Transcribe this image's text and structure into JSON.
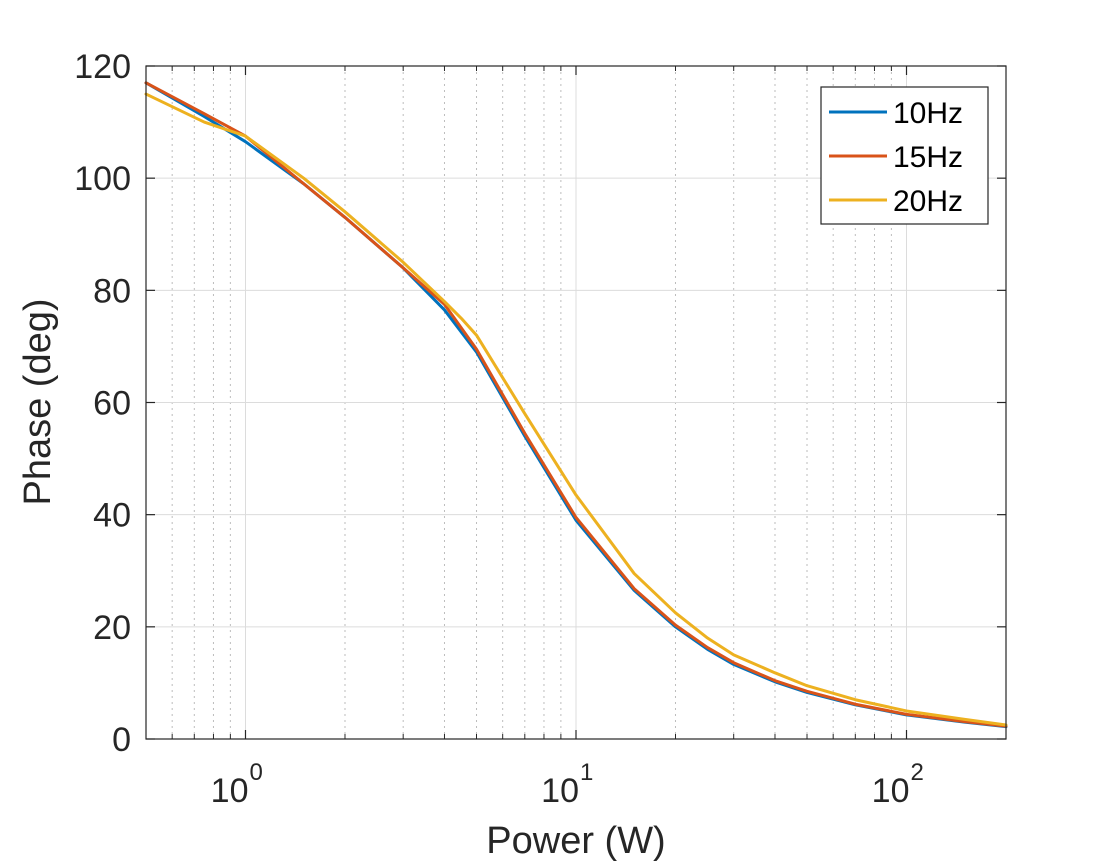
{
  "chart_data": {
    "type": "line",
    "title": "",
    "xlabel": "Power (W)",
    "ylabel": "Phase (deg)",
    "xscale": "log",
    "xlim": [
      0.5,
      200
    ],
    "ylim": [
      0,
      120
    ],
    "grid": true,
    "legend_position": "top-right",
    "x_ticks": [
      {
        "value": 1,
        "base": "10",
        "exponent": "0"
      },
      {
        "value": 10,
        "base": "10",
        "exponent": "1"
      },
      {
        "value": 100,
        "base": "10",
        "exponent": "2"
      }
    ],
    "y_ticks": [
      {
        "value": 0,
        "label": "0"
      },
      {
        "value": 20,
        "label": "20"
      },
      {
        "value": 40,
        "label": "40"
      },
      {
        "value": 60,
        "label": "60"
      },
      {
        "value": 80,
        "label": "80"
      },
      {
        "value": 100,
        "label": "100"
      },
      {
        "value": 120,
        "label": "120"
      }
    ],
    "series": [
      {
        "name": "10Hz",
        "color": "#0072BD",
        "x": [
          0.5,
          0.75,
          1,
          1.5,
          2,
          3,
          4,
          5,
          7,
          10,
          15,
          20,
          25,
          30,
          40,
          50,
          70,
          100,
          150,
          200
        ],
        "y": [
          117,
          111,
          106.5,
          99,
          93,
          84,
          76.5,
          69,
          54,
          39,
          26.5,
          20,
          16,
          13.3,
          10.2,
          8.3,
          6.1,
          4.3,
          3.0,
          2.2
        ]
      },
      {
        "name": "15Hz",
        "color": "#D95319",
        "x": [
          0.5,
          0.75,
          1,
          1.5,
          2,
          3,
          4,
          5,
          7,
          10,
          15,
          20,
          25,
          30,
          40,
          50,
          70,
          100,
          150,
          200
        ],
        "y": [
          117,
          111.5,
          107.5,
          99,
          93,
          84,
          77.5,
          69.5,
          54.5,
          39.5,
          26.8,
          20.3,
          16.3,
          13.6,
          10.4,
          8.5,
          6.2,
          4.4,
          3.1,
          2.3
        ]
      },
      {
        "name": "20Hz",
        "color": "#EDB120",
        "x": [
          0.5,
          0.75,
          1,
          1.5,
          2,
          3,
          4,
          4.5,
          5,
          7,
          10,
          15,
          20,
          25,
          30,
          40,
          50,
          70,
          100,
          150,
          200
        ],
        "y": [
          115,
          110,
          107.5,
          100,
          94,
          85,
          78,
          75,
          72,
          58,
          43.5,
          29.5,
          22.5,
          18,
          15,
          11.8,
          9.5,
          7,
          5,
          3.5,
          2.5
        ]
      }
    ]
  }
}
